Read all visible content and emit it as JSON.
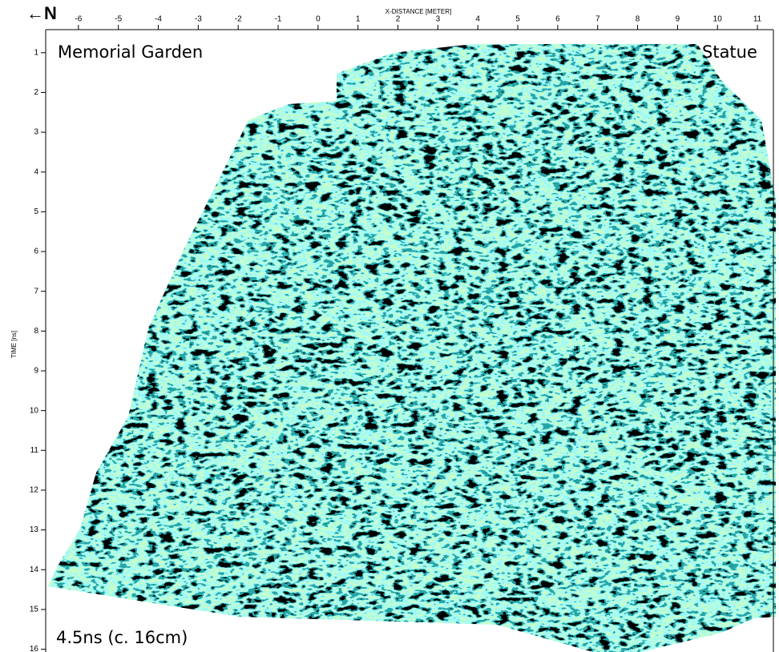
{
  "chart_data": {
    "type": "heatmap",
    "north_label": "←N",
    "xlabel": "X-DISTANCE [METER]",
    "ylabel": "TIME [ns]",
    "annotations": [
      "Memorial Garden",
      "Statue",
      "4.5ns (c. 16cm)"
    ],
    "xlim": [
      -6.82,
      11.4
    ],
    "xticks": [
      -6,
      -5,
      -4,
      -3,
      -2,
      -1,
      0,
      1,
      2,
      3,
      4,
      5,
      6,
      7,
      8,
      9,
      10,
      11
    ],
    "ylim": [
      0.42,
      16.07
    ],
    "yticks": [
      1,
      2,
      3,
      4,
      5,
      6,
      7,
      8,
      9,
      10,
      11,
      12,
      13,
      14,
      15,
      16
    ],
    "y_reversed": true
  }
}
